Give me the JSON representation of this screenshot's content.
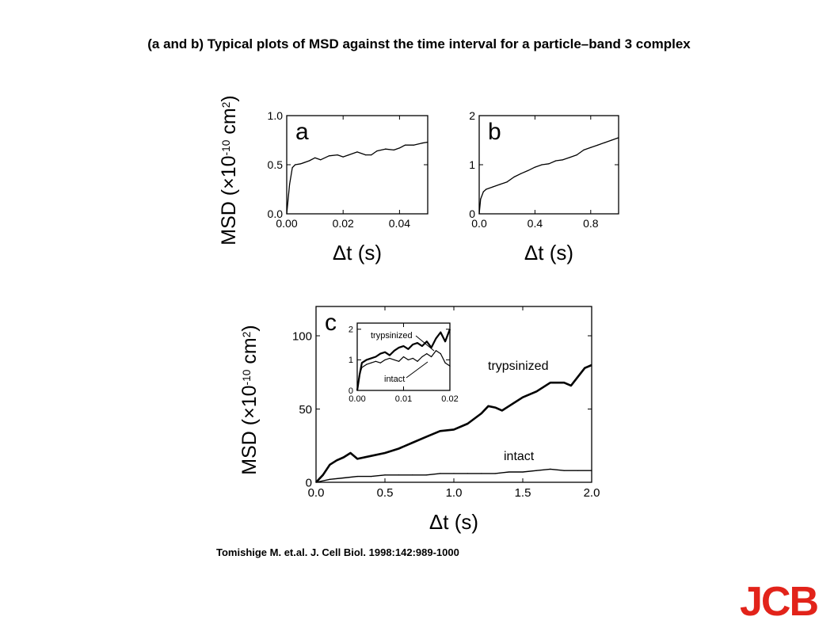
{
  "slide": {
    "title": "(a and b) Typical plots of MSD against the time interval for a particle–band 3 complex",
    "citation": "Tomishige M. et.al. J. Cell Biol. 1998:142:989-1000",
    "logo_text": "JCB",
    "logo_color": "#e2231a"
  },
  "chart_data": [
    {
      "id": "a",
      "type": "line",
      "panel_label": "a",
      "xlabel": "Δt (s)",
      "ylabel": "MSD (×10-10 cm2)",
      "xlim": [
        0,
        0.05
      ],
      "ylim": [
        0,
        1.0
      ],
      "xticks": [
        0.0,
        0.02,
        0.04
      ],
      "xtick_labels": [
        "0.00",
        "0.02",
        "0.04"
      ],
      "yticks": [
        0.0,
        0.5,
        1.0
      ],
      "ytick_labels": [
        "0.0",
        "0.5",
        "1.0"
      ],
      "series": [
        {
          "x": [
            0,
            0.001,
            0.002,
            0.003,
            0.005,
            0.008,
            0.01,
            0.012,
            0.015,
            0.018,
            0.02,
            0.022,
            0.025,
            0.028,
            0.03,
            0.032,
            0.035,
            0.038,
            0.04,
            0.042,
            0.045,
            0.048,
            0.05
          ],
          "y": [
            0.0,
            0.3,
            0.47,
            0.5,
            0.51,
            0.54,
            0.57,
            0.55,
            0.59,
            0.6,
            0.58,
            0.6,
            0.63,
            0.6,
            0.6,
            0.64,
            0.66,
            0.65,
            0.67,
            0.7,
            0.7,
            0.72,
            0.73
          ]
        }
      ]
    },
    {
      "id": "b",
      "type": "line",
      "panel_label": "b",
      "xlabel": "Δt (s)",
      "ylabel": "",
      "xlim": [
        0,
        1.0
      ],
      "ylim": [
        0,
        2.0
      ],
      "xticks": [
        0.0,
        0.4,
        0.8
      ],
      "xtick_labels": [
        "0.0",
        "0.4",
        "0.8"
      ],
      "yticks": [
        0,
        1,
        2
      ],
      "ytick_labels": [
        "0",
        "1",
        "2"
      ],
      "series": [
        {
          "x": [
            0,
            0.01,
            0.03,
            0.05,
            0.1,
            0.15,
            0.2,
            0.25,
            0.3,
            0.35,
            0.4,
            0.45,
            0.5,
            0.55,
            0.6,
            0.65,
            0.7,
            0.75,
            0.8,
            0.85,
            0.9,
            0.95,
            1.0
          ],
          "y": [
            0.0,
            0.3,
            0.45,
            0.5,
            0.55,
            0.6,
            0.65,
            0.75,
            0.82,
            0.88,
            0.95,
            1.0,
            1.02,
            1.08,
            1.1,
            1.15,
            1.2,
            1.3,
            1.35,
            1.4,
            1.45,
            1.5,
            1.55
          ]
        }
      ]
    },
    {
      "id": "c",
      "type": "line",
      "panel_label": "c",
      "xlabel": "Δt (s)",
      "ylabel": "MSD (×10-10 cm2)",
      "xlim": [
        0,
        2.0
      ],
      "ylim": [
        0,
        120
      ],
      "xticks": [
        0.0,
        0.5,
        1.0,
        1.5,
        2.0
      ],
      "xtick_labels": [
        "0.0",
        "0.5",
        "1.0",
        "1.5",
        "2.0"
      ],
      "yticks": [
        0,
        50,
        100
      ],
      "ytick_labels": [
        "0",
        "50",
        "100"
      ],
      "annotations": [
        "trypsinized",
        "intact"
      ],
      "series": [
        {
          "name": "trypsinized",
          "stroke_width": 2.6,
          "x": [
            0,
            0.05,
            0.1,
            0.15,
            0.2,
            0.25,
            0.3,
            0.4,
            0.5,
            0.6,
            0.7,
            0.8,
            0.9,
            1.0,
            1.1,
            1.2,
            1.25,
            1.3,
            1.35,
            1.4,
            1.5,
            1.6,
            1.7,
            1.8,
            1.85,
            1.9,
            1.95,
            2.0
          ],
          "y": [
            0,
            5,
            12,
            15,
            17,
            20,
            16,
            18,
            20,
            23,
            27,
            31,
            35,
            36,
            40,
            47,
            52,
            51,
            49,
            52,
            58,
            62,
            68,
            68,
            66,
            72,
            78,
            80
          ]
        },
        {
          "name": "intact",
          "stroke_width": 1.4,
          "x": [
            0,
            0.1,
            0.2,
            0.3,
            0.4,
            0.5,
            0.6,
            0.7,
            0.8,
            0.9,
            1.0,
            1.1,
            1.2,
            1.3,
            1.4,
            1.5,
            1.6,
            1.7,
            1.8,
            1.9,
            2.0
          ],
          "y": [
            0,
            2,
            3,
            4,
            4,
            5,
            5,
            5,
            5,
            6,
            6,
            6,
            6,
            6,
            7,
            7,
            8,
            9,
            8,
            8,
            8
          ]
        }
      ]
    },
    {
      "id": "c-inset",
      "type": "line",
      "xlim": [
        0,
        0.02
      ],
      "ylim": [
        0,
        2.2
      ],
      "xticks": [
        0.0,
        0.01,
        0.02
      ],
      "xtick_labels": [
        "0.00",
        "0.01",
        "0.02"
      ],
      "yticks": [
        0,
        1,
        2
      ],
      "ytick_labels": [
        "0",
        "1",
        "2"
      ],
      "annotations": [
        "trypsinized",
        "intact"
      ],
      "series": [
        {
          "name": "trypsinized",
          "stroke_width": 2.2,
          "x": [
            0,
            0.0005,
            0.001,
            0.002,
            0.003,
            0.004,
            0.005,
            0.006,
            0.007,
            0.008,
            0.009,
            0.01,
            0.011,
            0.012,
            0.013,
            0.014,
            0.015,
            0.016,
            0.017,
            0.018,
            0.019,
            0.02
          ],
          "y": [
            0,
            0.5,
            0.9,
            1.0,
            1.05,
            1.1,
            1.2,
            1.25,
            1.15,
            1.3,
            1.4,
            1.45,
            1.35,
            1.5,
            1.55,
            1.45,
            1.6,
            1.4,
            1.7,
            1.9,
            1.6,
            2.0
          ]
        },
        {
          "name": "intact",
          "stroke_width": 1.2,
          "x": [
            0,
            0.0005,
            0.001,
            0.002,
            0.003,
            0.004,
            0.005,
            0.006,
            0.007,
            0.008,
            0.009,
            0.01,
            0.011,
            0.012,
            0.013,
            0.014,
            0.015,
            0.016,
            0.017,
            0.018,
            0.019,
            0.02
          ],
          "y": [
            0,
            0.5,
            0.75,
            0.85,
            0.9,
            0.95,
            0.9,
            1.0,
            1.05,
            1.0,
            0.95,
            1.1,
            1.0,
            1.05,
            0.95,
            1.1,
            1.2,
            1.1,
            1.3,
            1.2,
            0.9,
            0.8
          ]
        }
      ]
    }
  ]
}
